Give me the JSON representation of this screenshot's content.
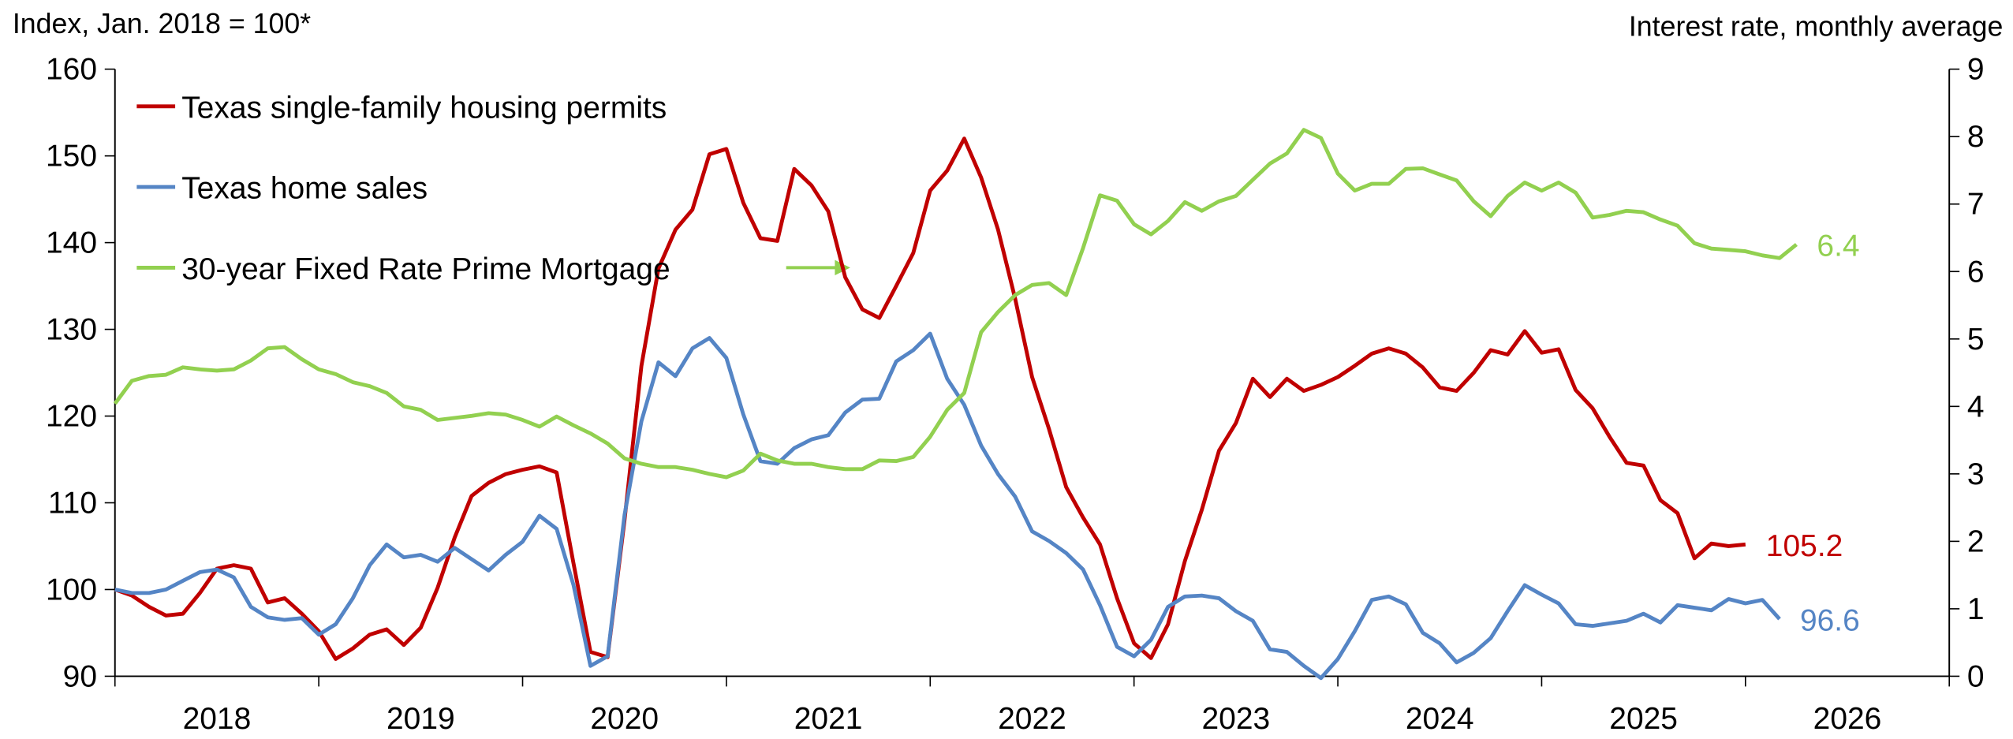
{
  "chart_data": {
    "type": "line",
    "y_label": "Index, Jan. 2018 = 100*",
    "y2_label": "Interest rate, monthly average",
    "xlim": [
      2018,
      2027
    ],
    "xticks": [
      2018,
      2019,
      2020,
      2021,
      2022,
      2023,
      2024,
      2025,
      2026,
      2027
    ],
    "x_labels": [
      {
        "value": 2018.5,
        "label": "2018"
      },
      {
        "value": 2019.5,
        "label": "2019"
      },
      {
        "value": 2020.5,
        "label": "2020"
      },
      {
        "value": 2021.5,
        "label": "2021"
      },
      {
        "value": 2022.5,
        "label": "2022"
      },
      {
        "value": 2023.5,
        "label": "2023"
      },
      {
        "value": 2024.5,
        "label": "2024"
      },
      {
        "value": 2025.5,
        "label": "2025"
      },
      {
        "value": 2026.5,
        "label": "2026"
      }
    ],
    "ylim": [
      90,
      160
    ],
    "yticks": [
      90,
      100,
      110,
      120,
      130,
      140,
      150,
      160
    ],
    "y2lim": [
      0,
      9
    ],
    "y2ticks": [
      0,
      1,
      2,
      3,
      4,
      5,
      6,
      7,
      8,
      9
    ],
    "grid": false,
    "legend": "upper left",
    "x": [
      2018,
      2018.083,
      2018.167,
      2018.25,
      2018.333,
      2018.417,
      2018.5,
      2018.583,
      2018.667,
      2018.75,
      2018.833,
      2018.917,
      2019,
      2019.083,
      2019.167,
      2019.25,
      2019.333,
      2019.417,
      2019.5,
      2019.583,
      2019.667,
      2019.75,
      2019.833,
      2019.917,
      2020,
      2020.083,
      2020.167,
      2020.25,
      2020.333,
      2020.417,
      2020.5,
      2020.583,
      2020.667,
      2020.75,
      2020.833,
      2020.917,
      2021,
      2021.083,
      2021.167,
      2021.25,
      2021.333,
      2021.417,
      2021.5,
      2021.583,
      2021.667,
      2021.75,
      2021.833,
      2021.917,
      2022,
      2022.083,
      2022.167,
      2022.25,
      2022.333,
      2022.417,
      2022.5,
      2022.583,
      2022.667,
      2022.75,
      2022.833,
      2022.917,
      2023,
      2023.083,
      2023.167,
      2023.25,
      2023.333,
      2023.417,
      2023.5,
      2023.583,
      2023.667,
      2023.75,
      2023.833,
      2023.917,
      2024,
      2024.083,
      2024.167,
      2024.25,
      2024.333,
      2024.417,
      2024.5,
      2024.583,
      2024.667,
      2024.75,
      2024.833,
      2024.917,
      2025,
      2025.083,
      2025.167,
      2025.25,
      2025.333,
      2025.417,
      2025.5,
      2025.583,
      2025.667,
      2025.75,
      2025.833,
      2025.917,
      2026,
      2026.083,
      2026.167,
      2026.25
    ],
    "series": [
      {
        "name": "Texas single-family housing permits",
        "color": "#c00000",
        "values": [
          100,
          99.3,
          98,
          97,
          97.2,
          99.6,
          102.4,
          102.8,
          102.4,
          98.5,
          99,
          97.2,
          95.2,
          92,
          93.2,
          94.8,
          95.4,
          93.6,
          95.6,
          100.2,
          106,
          110.8,
          112.3,
          113.3,
          113.8,
          114.2,
          113.5,
          103,
          92.8,
          92.2,
          108,
          125.8,
          137,
          141.5,
          143.8,
          150.2,
          150.8,
          144.6,
          140.5,
          140.2,
          148.5,
          146.6,
          143.6,
          136,
          132.3,
          131.3,
          135,
          138.8,
          146,
          148.3,
          152,
          147.5,
          141.5,
          133.5,
          124.5,
          118.5,
          111.8,
          108.3,
          105.2,
          99,
          93.8,
          92.1,
          96,
          103.3,
          109.2,
          116,
          119.2,
          124.3,
          122.2,
          124.3,
          122.9,
          123.6,
          124.5,
          125.8,
          127.2,
          127.8,
          127.2,
          125.6,
          123.3,
          122.9,
          125,
          127.6,
          127.1,
          129.8,
          127.3,
          127.7,
          123,
          120.9,
          117.6,
          114.6,
          114.3,
          110.3,
          108.8,
          103.6,
          105.3,
          105,
          105.2,
          null,
          null,
          null
        ]
      },
      {
        "name": "Texas home sales",
        "color": "#5585c5",
        "values": [
          100,
          99.6,
          99.6,
          100,
          101,
          102,
          102.3,
          101.4,
          98,
          96.8,
          96.5,
          96.7,
          94.8,
          96,
          99,
          102.8,
          105.2,
          103.7,
          104,
          103.2,
          104.8,
          103.5,
          102.2,
          104,
          105.5,
          108.5,
          107,
          100.5,
          91.2,
          92.3,
          108.6,
          119.4,
          126.2,
          124.6,
          127.8,
          129,
          126.7,
          120.2,
          114.8,
          114.5,
          116.3,
          117.3,
          117.8,
          120.4,
          121.9,
          122,
          126.3,
          127.6,
          129.5,
          124.3,
          121.3,
          116.6,
          113.3,
          110.7,
          106.7,
          105.6,
          104.2,
          102.3,
          98.2,
          93.4,
          92.3,
          94.2,
          98,
          99.2,
          99.3,
          99,
          97.5,
          96.4,
          93.1,
          92.8,
          91.2,
          89.8,
          92,
          95.2,
          98.8,
          99.2,
          98.3,
          95,
          93.8,
          91.6,
          92.7,
          94.4,
          97.5,
          100.5,
          99.4,
          98.4,
          96,
          95.8,
          96.1,
          96.4,
          97.2,
          96.2,
          98.2,
          97.9,
          97.6,
          98.9,
          98.4,
          98.8,
          96.6,
          null
        ]
      },
      {
        "name": "30-year Fixed Rate Prime Mortgage",
        "color": "#92d050",
        "axis": "y2",
        "values": [
          4.04,
          4.38,
          4.45,
          4.47,
          4.58,
          4.55,
          4.53,
          4.55,
          4.68,
          4.86,
          4.88,
          4.7,
          4.55,
          4.48,
          4.36,
          4.3,
          4.2,
          4.0,
          3.95,
          3.8,
          3.83,
          3.86,
          3.9,
          3.88,
          3.8,
          3.7,
          3.85,
          3.72,
          3.6,
          3.45,
          3.23,
          3.15,
          3.1,
          3.1,
          3.06,
          3.0,
          2.95,
          3.05,
          3.3,
          3.2,
          3.15,
          3.15,
          3.1,
          3.07,
          3.07,
          3.2,
          3.19,
          3.25,
          3.55,
          3.95,
          4.2,
          5.1,
          5.4,
          5.65,
          5.8,
          5.83,
          5.65,
          6.35,
          7.13,
          7.05,
          6.7,
          6.55,
          6.75,
          7.03,
          6.9,
          7.04,
          7.12,
          7.36,
          7.6,
          7.75,
          8.1,
          7.98,
          7.45,
          7.2,
          7.3,
          7.3,
          7.52,
          7.53,
          7.44,
          7.35,
          7.04,
          6.82,
          7.12,
          7.32,
          7.2,
          7.32,
          7.17,
          6.8,
          6.84,
          6.9,
          6.88,
          6.77,
          6.68,
          6.42,
          6.34,
          6.32,
          6.3,
          6.24,
          6.2,
          6.4
        ]
      }
    ]
  }
}
